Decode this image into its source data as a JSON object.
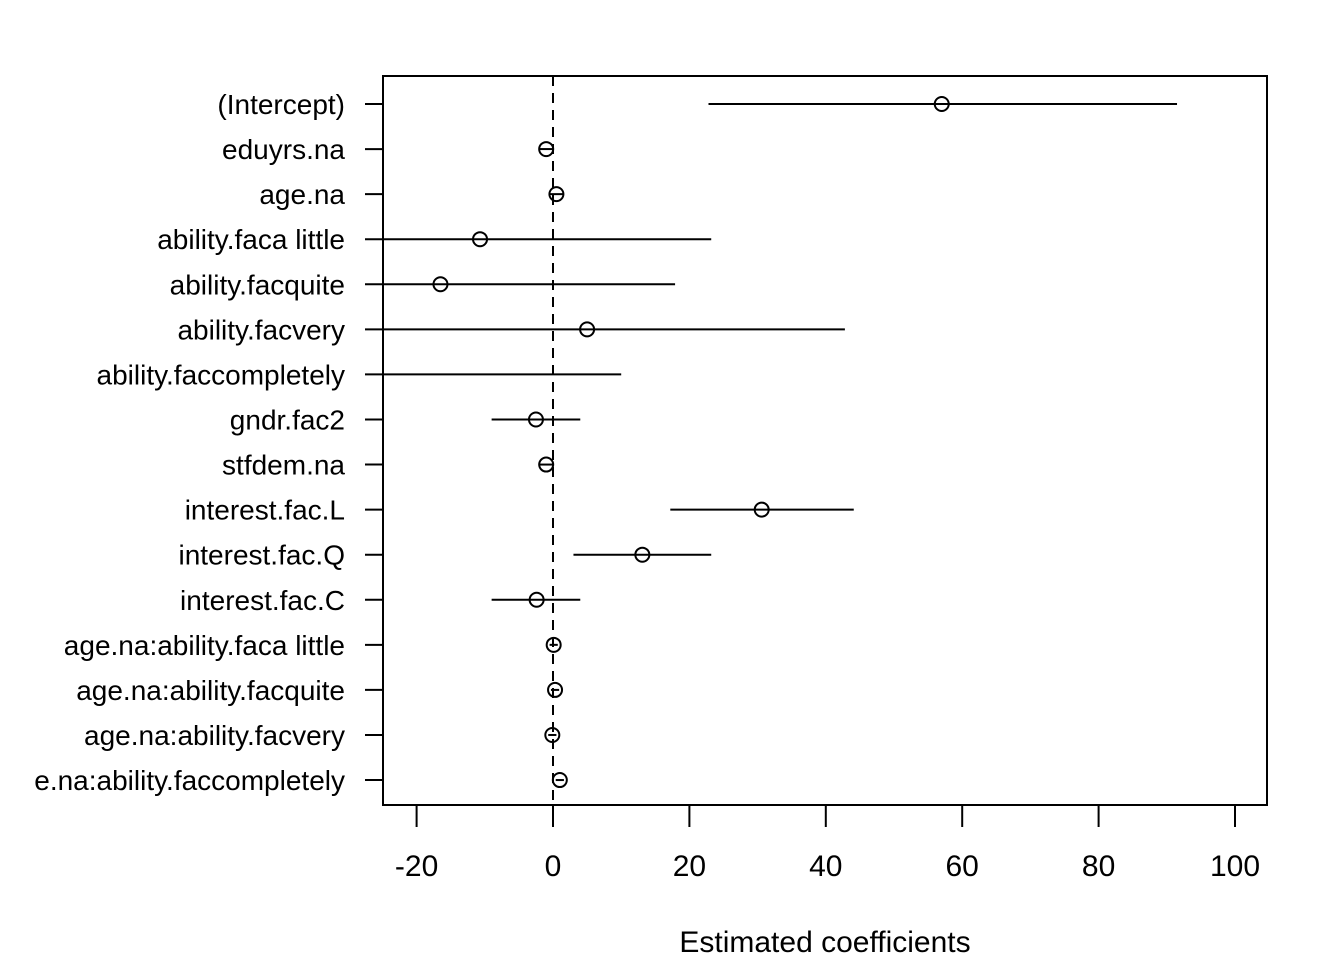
{
  "chart_data": {
    "type": "scatter",
    "variant": "coefficient-plot",
    "xlabel": "Estimated coefficients",
    "xlim": [
      -25,
      105
    ],
    "xticks": [
      -20,
      0,
      20,
      40,
      60,
      80,
      100
    ],
    "xtick_labels": [
      "-20",
      "0",
      "20",
      "40",
      "60",
      "80",
      "100"
    ],
    "reference_line": {
      "x": 0,
      "style": "dashed"
    },
    "grid": false,
    "legend": "none",
    "terms": [
      {
        "label": "(Intercept)",
        "estimate": 57,
        "lower": 22.8,
        "upper": 91.5
      },
      {
        "label": "eduyrs.na",
        "estimate": -1.0,
        "lower": -2.0,
        "upper": 0.0
      },
      {
        "label": "age.na",
        "estimate": 0.5,
        "lower": -0.5,
        "upper": 1.5
      },
      {
        "label": "ability.faca little",
        "estimate": -10.7,
        "lower": -27.5,
        "upper": 23.2
      },
      {
        "label": "ability.facquite",
        "estimate": -16.5,
        "lower": -27.5,
        "upper": 17.9
      },
      {
        "label": "ability.facvery",
        "estimate": 5.0,
        "lower": -27.5,
        "upper": 42.8
      },
      {
        "label": "ability.faccompletely",
        "estimate": null,
        "lower": -27.5,
        "upper": 10.0
      },
      {
        "label": "gndr.fac2",
        "estimate": -2.5,
        "lower": -9.0,
        "upper": 4.0
      },
      {
        "label": "stfdem.na",
        "estimate": -1.0,
        "lower": -2.0,
        "upper": 0.0
      },
      {
        "label": "interest.fac.L",
        "estimate": 30.6,
        "lower": 17.2,
        "upper": 44.1
      },
      {
        "label": "interest.fac.Q",
        "estimate": 13.1,
        "lower": 3.0,
        "upper": 23.2
      },
      {
        "label": "interest.fac.C",
        "estimate": -2.4,
        "lower": -9.0,
        "upper": 4.0
      },
      {
        "label": "age.na:ability.faca little",
        "estimate": 0.1,
        "lower": -0.5,
        "upper": 0.7
      },
      {
        "label": "age.na:ability.facquite",
        "estimate": 0.3,
        "lower": -0.3,
        "upper": 0.9
      },
      {
        "label": "age.na:ability.facvery",
        "estimate": -0.1,
        "lower": -0.7,
        "upper": 0.5
      },
      {
        "label": "e.na:ability.faccompletely",
        "estimate": 1.0,
        "lower": 0.4,
        "upper": 1.6
      }
    ]
  }
}
